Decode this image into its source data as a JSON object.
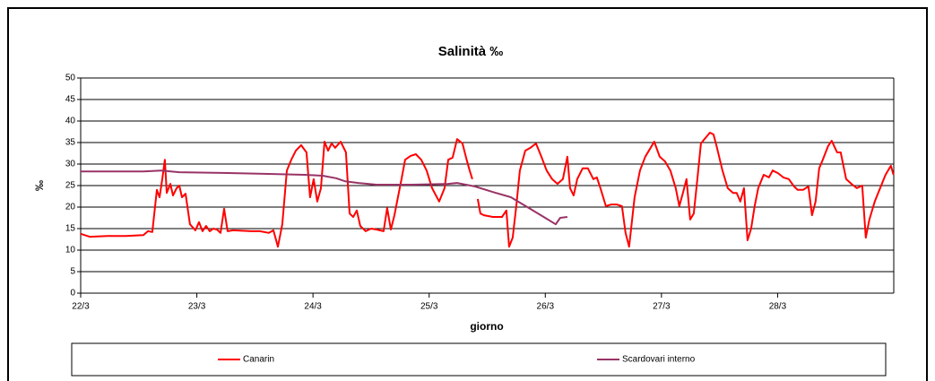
{
  "chart_data": {
    "type": "line",
    "title": "Salinità ‰",
    "x_label": "giorno",
    "y_label": "‰",
    "xlim": [
      0,
      7
    ],
    "xticks": [
      {
        "value": 0,
        "label": "22/3"
      },
      {
        "value": 1,
        "label": "23/3"
      },
      {
        "value": 2,
        "label": "24/3"
      },
      {
        "value": 3,
        "label": "25/3"
      },
      {
        "value": 4,
        "label": "26/3"
      },
      {
        "value": 5,
        "label": "27/3"
      },
      {
        "value": 6,
        "label": "28/3"
      }
    ],
    "ylim": [
      0,
      50
    ],
    "yticks": [
      0,
      5,
      10,
      15,
      20,
      25,
      30,
      35,
      40,
      45,
      50
    ],
    "grid": true,
    "legend": "bottom",
    "series": [
      {
        "name": "Canarin",
        "color": "#ff0000",
        "x": [
          0,
          0.077,
          0.231,
          0.386,
          0.54,
          0.579,
          0.617,
          0.656,
          0.679,
          0.702,
          0.725,
          0.741,
          0.772,
          0.795,
          0.826,
          0.849,
          0.872,
          0.903,
          0.941,
          0.988,
          1.019,
          1.049,
          1.08,
          1.111,
          1.142,
          1.173,
          1.204,
          1.235,
          1.265,
          1.312,
          1.466,
          1.543,
          1.62,
          1.659,
          1.698,
          1.736,
          1.775,
          1.813,
          1.852,
          1.898,
          1.944,
          1.975,
          2.006,
          2.037,
          2.068,
          2.099,
          2.13,
          2.16,
          2.191,
          2.238,
          2.284,
          2.315,
          2.346,
          2.377,
          2.407,
          2.454,
          2.5,
          2.546,
          2.608,
          2.639,
          2.67,
          2.701,
          2.731,
          2.762,
          2.793,
          2.84,
          2.886,
          2.932,
          2.978,
          3.025,
          3.086,
          3.133,
          3.164,
          3.202,
          3.241,
          3.287,
          3.318,
          3.349,
          3.372,
          3.395,
          3.418,
          3.441,
          3.472,
          3.549,
          3.627,
          3.665,
          3.688,
          3.719,
          3.75,
          3.781,
          3.827,
          3.873,
          3.92,
          3.966,
          4.012,
          4.059,
          4.105,
          4.151,
          4.19,
          4.213,
          4.244,
          4.275,
          4.321,
          4.367,
          4.414,
          4.444,
          4.475,
          4.522,
          4.568,
          4.614,
          4.66,
          4.691,
          4.722,
          4.769,
          4.815,
          4.861,
          4.907,
          4.938,
          4.985,
          5.031,
          5.077,
          5.123,
          5.154,
          5.185,
          5.216,
          5.247,
          5.278,
          5.309,
          5.34,
          5.37,
          5.417,
          5.448,
          5.478,
          5.525,
          5.571,
          5.617,
          5.648,
          5.679,
          5.71,
          5.741,
          5.772,
          5.802,
          5.833,
          5.88,
          5.926,
          5.957,
          6.003,
          6.049,
          6.096,
          6.142,
          6.173,
          6.219,
          6.265,
          6.296,
          6.327,
          6.358,
          6.389,
          6.435,
          6.466,
          6.512,
          6.543,
          6.59,
          6.636,
          6.682,
          6.728,
          6.759,
          6.79,
          6.836,
          6.883,
          6.929,
          6.975,
          6.998
        ],
        "values": [
          13.8,
          13.1,
          13.3,
          13.3,
          13.5,
          14.4,
          14.2,
          24.0,
          22.3,
          26.5,
          31.0,
          23.3,
          25.4,
          22.7,
          24.4,
          25.0,
          22.3,
          23.1,
          16.0,
          14.6,
          16.5,
          14.4,
          15.6,
          14.4,
          15.0,
          14.8,
          14.0,
          19.6,
          14.4,
          14.6,
          14.4,
          14.4,
          14.0,
          14.6,
          10.8,
          16.0,
          28.5,
          31.0,
          33.1,
          34.4,
          32.7,
          22.3,
          26.5,
          21.3,
          24.4,
          35.2,
          33.1,
          34.8,
          33.8,
          35.2,
          32.7,
          18.5,
          17.7,
          19.2,
          15.6,
          14.4,
          15.0,
          14.8,
          14.4,
          19.8,
          14.8,
          18.1,
          22.3,
          26.5,
          31.0,
          31.9,
          32.3,
          31.0,
          28.5,
          24.4,
          21.3,
          24.4,
          31.0,
          31.5,
          35.8,
          34.8,
          31.5,
          28.5,
          26.5,
          null,
          21.9,
          18.5,
          18.1,
          17.7,
          17.7,
          19.2,
          10.8,
          12.9,
          20.2,
          28.5,
          33.1,
          33.8,
          34.8,
          31.7,
          28.5,
          26.5,
          25.4,
          26.5,
          31.7,
          24.4,
          22.7,
          26.5,
          29.0,
          29.0,
          26.5,
          26.9,
          24.4,
          20.2,
          20.6,
          20.6,
          20.2,
          14.0,
          10.8,
          22.3,
          28.5,
          31.7,
          33.8,
          35.2,
          31.7,
          30.6,
          28.5,
          24.4,
          20.2,
          23.3,
          26.5,
          17.1,
          18.5,
          26.5,
          34.8,
          35.8,
          37.3,
          36.9,
          33.8,
          28.5,
          24.4,
          23.3,
          23.3,
          21.3,
          24.4,
          12.3,
          15.0,
          20.2,
          24.4,
          27.5,
          26.9,
          28.5,
          27.9,
          26.9,
          26.5,
          24.8,
          24.0,
          24.0,
          24.8,
          18.1,
          21.3,
          29.0,
          31.0,
          34.2,
          35.4,
          32.7,
          32.7,
          26.5,
          25.4,
          24.4,
          25.0,
          12.9,
          17.1,
          21.3,
          24.4,
          27.5,
          29.6,
          27.5
        ]
      },
      {
        "name": "Scardovari interno",
        "color": "#993366",
        "x": [
          0,
          0.54,
          0.694,
          0.849,
          1.312,
          1.62,
          1.929,
          2.083,
          2.199,
          2.276,
          2.392,
          2.546,
          2.855,
          3.164,
          3.241,
          3.395,
          3.549,
          3.704,
          3.858,
          4.012,
          4.09,
          4.128,
          4.19
        ],
        "values": [
          28.3,
          28.3,
          28.5,
          28.1,
          27.9,
          27.7,
          27.5,
          27.3,
          26.7,
          26.0,
          25.6,
          25.2,
          25.2,
          25.4,
          25.6,
          24.8,
          23.5,
          22.3,
          19.8,
          17.3,
          16.0,
          17.5,
          17.7
        ]
      }
    ]
  }
}
